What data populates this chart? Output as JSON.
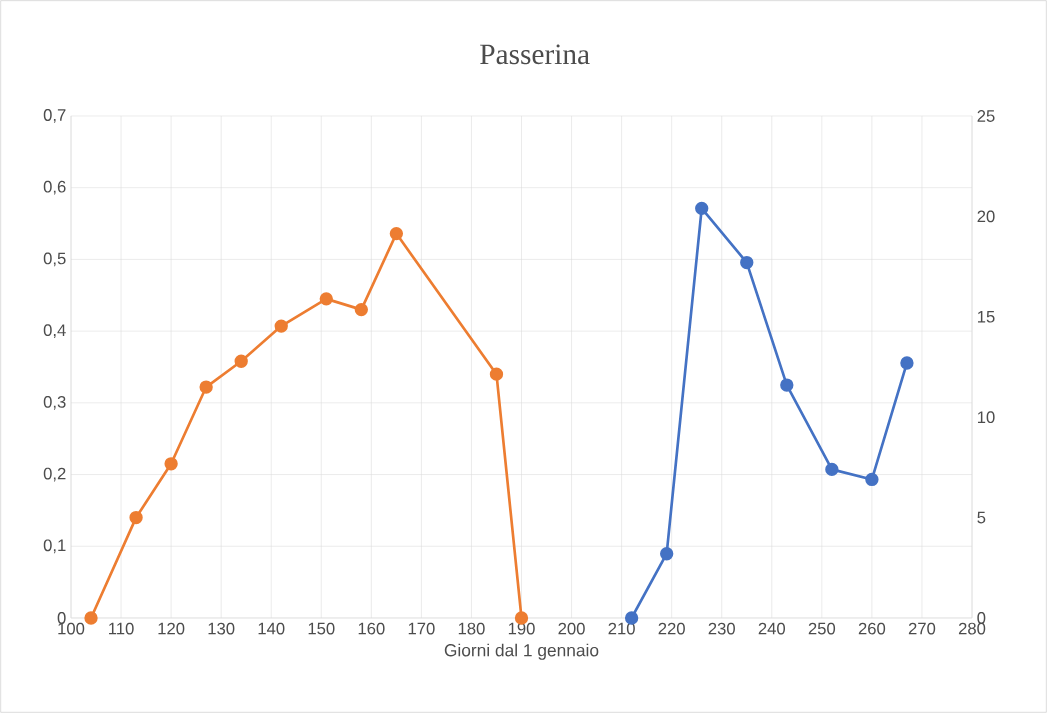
{
  "chart_data": {
    "type": "line",
    "title": "Passerina",
    "xlabel": "Giorni dal 1 gennaio",
    "xlim": [
      100,
      280
    ],
    "xticks": [
      100,
      110,
      120,
      130,
      140,
      150,
      160,
      170,
      180,
      190,
      200,
      210,
      220,
      230,
      240,
      250,
      260,
      270,
      280
    ],
    "ylim": [
      0,
      0.7
    ],
    "yticks": [
      0,
      {
        "value": 0.1,
        "label": "0,1"
      },
      {
        "value": 0.2,
        "label": "0,2"
      },
      {
        "value": 0.3,
        "label": "0,3"
      },
      {
        "value": 0.4,
        "label": "0,4"
      },
      {
        "value": 0.5,
        "label": "0,5"
      },
      {
        "value": 0.6,
        "label": "0,6"
      },
      {
        "value": 0.7,
        "label": "0,7"
      }
    ],
    "y2lim": [
      0,
      25
    ],
    "y2ticks": [
      0,
      5,
      10,
      15,
      20,
      25
    ],
    "grid": true,
    "marker": "circle",
    "line_style": "solid",
    "series": [
      {
        "color": "#ed7d31",
        "x": [
          104,
          113,
          120,
          127,
          134,
          142,
          151,
          158,
          165,
          185,
          190
        ],
        "values": [
          0,
          0.14,
          0.215,
          0.322,
          0.358,
          0.407,
          0.445,
          0.43,
          0.536,
          0.34,
          0
        ]
      },
      {
        "color": "#4472c4",
        "axis": "y2",
        "x": [
          212,
          219,
          226,
          235,
          243,
          252,
          260,
          267
        ],
        "values": [
          0,
          3.2,
          20.4,
          17.7,
          11.6,
          7.4,
          6.9,
          12.7
        ]
      }
    ]
  }
}
